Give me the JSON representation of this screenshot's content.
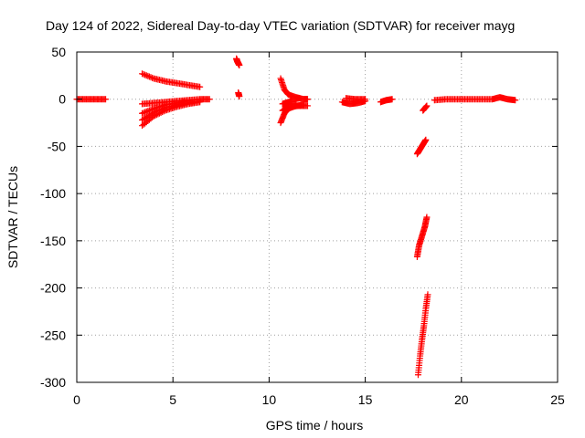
{
  "chart_data": {
    "type": "scatter",
    "title": "Day 124 of 2022, Sidereal Day-to-day VTEC variation (SDTVAR) for receiver mayg",
    "xlabel": "GPS time / hours",
    "ylabel": "SDTVAR / TECUs",
    "xlim": [
      0,
      25
    ],
    "ylim": [
      -300,
      50
    ],
    "xticks": [
      0,
      5,
      10,
      15,
      20,
      25
    ],
    "yticks": [
      50,
      0,
      -50,
      -100,
      -150,
      -200,
      -250,
      -300
    ],
    "xtick_labels": [
      "0",
      "5",
      "10",
      "15",
      "20",
      "25"
    ],
    "ytick_labels": [
      "50",
      "0",
      "-50",
      "-100",
      "-150",
      "-200",
      "-250",
      "-300"
    ],
    "grid": true,
    "marker": "+",
    "color": "#ff0000",
    "segments": [
      {
        "x": [
          0.0,
          0.5,
          1.0,
          1.5
        ],
        "y": [
          0,
          0,
          0,
          0
        ]
      },
      {
        "x": [
          3.4,
          4.0,
          4.6,
          5.2,
          5.8,
          6.4
        ],
        "y": [
          27,
          22,
          19,
          17,
          15,
          13
        ]
      },
      {
        "x": [
          3.4,
          4.0,
          4.6,
          5.2,
          5.8,
          6.4
        ],
        "y": [
          -28,
          -18,
          -12,
          -8,
          -5,
          -3
        ]
      },
      {
        "x": [
          3.4,
          4.0,
          4.6,
          5.2,
          5.8,
          6.4
        ],
        "y": [
          -22,
          -14,
          -9,
          -6,
          -4,
          -2
        ]
      },
      {
        "x": [
          3.4,
          4.0,
          4.6,
          5.2,
          5.8,
          6.4,
          6.9
        ],
        "y": [
          -5,
          -4,
          -3,
          -2,
          -1,
          0,
          0
        ]
      },
      {
        "x": [
          3.4,
          4.0,
          4.6,
          5.2,
          5.8
        ],
        "y": [
          -15,
          -10,
          -6,
          -4,
          -2
        ]
      },
      {
        "x": [
          8.3,
          8.35,
          8.4,
          8.45
        ],
        "y": [
          43,
          40,
          38,
          36
        ]
      },
      {
        "x": [
          8.4,
          8.45
        ],
        "y": [
          7,
          3
        ]
      },
      {
        "x": [
          10.6,
          10.8,
          11.0,
          11.4,
          11.8,
          12.0
        ],
        "y": [
          22,
          10,
          5,
          2,
          0,
          0
        ]
      },
      {
        "x": [
          10.6,
          10.8,
          11.0,
          11.4,
          11.8
        ],
        "y": [
          -25,
          -15,
          -10,
          -7,
          -6
        ]
      },
      {
        "x": [
          10.7,
          11.0,
          11.5,
          12.0
        ],
        "y": [
          -12,
          -8,
          -7,
          -7
        ]
      },
      {
        "x": [
          10.7,
          11.0,
          11.4
        ],
        "y": [
          -5,
          -3,
          -2
        ]
      },
      {
        "x": [
          13.8,
          14.2,
          14.6,
          15.0
        ],
        "y": [
          -3,
          -5,
          -4,
          -2
        ]
      },
      {
        "x": [
          14.0,
          14.5,
          15.0
        ],
        "y": [
          1,
          0,
          0
        ]
      },
      {
        "x": [
          15.8,
          16.1,
          16.4
        ],
        "y": [
          -3,
          -1,
          0
        ]
      },
      {
        "x": [
          17.7,
          17.85,
          18.0,
          18.15
        ],
        "y": [
          -58,
          -53,
          -48,
          -43
        ]
      },
      {
        "x": [
          17.7,
          17.8,
          17.95,
          18.1,
          18.2
        ],
        "y": [
          -167,
          -155,
          -145,
          -135,
          -125
        ]
      },
      {
        "x": [
          17.75,
          17.85,
          17.95,
          18.05,
          18.15,
          18.25
        ],
        "y": [
          -292,
          -272,
          -255,
          -240,
          -222,
          -207
        ]
      },
      {
        "x": [
          18.0,
          18.2
        ],
        "y": [
          -12,
          -7
        ]
      },
      {
        "x": [
          18.6,
          19.2,
          19.8,
          20.4,
          21.0,
          21.6,
          22.0,
          22.4,
          22.8
        ],
        "y": [
          -1,
          0,
          0,
          0,
          0,
          0,
          2,
          0,
          -1
        ]
      }
    ]
  }
}
